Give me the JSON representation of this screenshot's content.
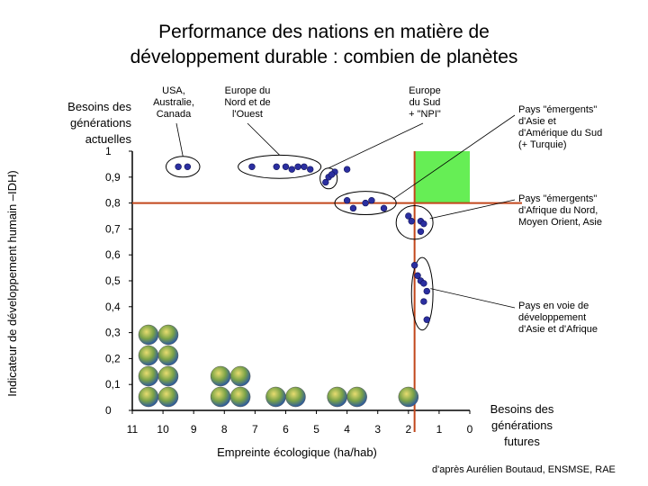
{
  "title_line1": "Performance des nations en matière de",
  "title_line2": "développement durable : combien de planètes",
  "chart_data": {
    "type": "scatter",
    "xlabel": "Empreinte écologique (ha/hab)",
    "ylabel": "Indicateur de développement humain –IDH)",
    "x_reversed": true,
    "xlim": [
      11,
      0
    ],
    "ylim": [
      0,
      1
    ],
    "x_ticks": [
      "11",
      "10",
      "9",
      "8",
      "7",
      "6",
      "5",
      "4",
      "3",
      "2",
      "1",
      "0"
    ],
    "y_ticks": [
      "0",
      "0,1",
      "0,2",
      "0,3",
      "0,4",
      "0,5",
      "0,6",
      "0,7",
      "0,8",
      "0,9",
      "1"
    ],
    "thresholds": {
      "x": 1.8,
      "y": 0.8
    },
    "sustainable_zone": {
      "x": [
        1.8,
        0
      ],
      "y": [
        0.8,
        1
      ]
    },
    "points": [
      {
        "x": 9.5,
        "y": 0.94
      },
      {
        "x": 9.2,
        "y": 0.94
      },
      {
        "x": 7.1,
        "y": 0.94
      },
      {
        "x": 6.3,
        "y": 0.94
      },
      {
        "x": 6.0,
        "y": 0.94
      },
      {
        "x": 5.8,
        "y": 0.93
      },
      {
        "x": 5.6,
        "y": 0.94
      },
      {
        "x": 5.4,
        "y": 0.94
      },
      {
        "x": 5.2,
        "y": 0.93
      },
      {
        "x": 4.4,
        "y": 0.92
      },
      {
        "x": 4.0,
        "y": 0.93
      },
      {
        "x": 4.7,
        "y": 0.88
      },
      {
        "x": 4.6,
        "y": 0.9
      },
      {
        "x": 4.5,
        "y": 0.91
      },
      {
        "x": 4.0,
        "y": 0.81
      },
      {
        "x": 3.8,
        "y": 0.78
      },
      {
        "x": 3.4,
        "y": 0.8
      },
      {
        "x": 3.2,
        "y": 0.81
      },
      {
        "x": 2.8,
        "y": 0.78
      },
      {
        "x": 2.0,
        "y": 0.75
      },
      {
        "x": 1.9,
        "y": 0.73
      },
      {
        "x": 1.6,
        "y": 0.73
      },
      {
        "x": 1.5,
        "y": 0.72
      },
      {
        "x": 1.6,
        "y": 0.69
      },
      {
        "x": 1.8,
        "y": 0.56
      },
      {
        "x": 1.7,
        "y": 0.52
      },
      {
        "x": 1.6,
        "y": 0.5
      },
      {
        "x": 1.5,
        "y": 0.49
      },
      {
        "x": 1.4,
        "y": 0.46
      },
      {
        "x": 1.5,
        "y": 0.42
      },
      {
        "x": 1.4,
        "y": 0.35
      }
    ],
    "groups": [
      {
        "label": "USA,\nAustralie,\nCanada",
        "cx": 9.35,
        "cy": 0.94,
        "rx": 0.55,
        "ry": 0.04
      },
      {
        "label": "Europe du\nNord et de\nl'Ouest",
        "cx": 6.2,
        "cy": 0.94,
        "rx": 1.35,
        "ry": 0.045
      },
      {
        "label": "Europe\ndu Sud\n+ \"NPI\"",
        "cx": 4.6,
        "cy": 0.895,
        "rx": 0.28,
        "ry": 0.04
      },
      {
        "label": "Pays \"émergents\"\nd'Asie et\nd'Amérique du Sud\n(+ Turquie)",
        "cx": 3.4,
        "cy": 0.8,
        "rx": 1.0,
        "ry": 0.045
      },
      {
        "label": "Pays \"émergents\"\nd'Afrique du Nord,\nMoyen Orient, Asie",
        "cx": 1.8,
        "cy": 0.725,
        "rx": 0.6,
        "ry": 0.065
      },
      {
        "label": "Pays en voie de\ndéveloppement\nd'Asie et d'Afrique",
        "cx": 1.55,
        "cy": 0.45,
        "rx": 0.35,
        "ry": 0.14
      }
    ],
    "planet_stacks": [
      {
        "x": 10.15,
        "count": 8
      },
      {
        "x": 7.8,
        "count": 4
      },
      {
        "x": 6.0,
        "count": 2
      },
      {
        "x": 4.0,
        "count": 2
      },
      {
        "x": 2.0,
        "count": 1
      }
    ]
  },
  "left_annotation": "Besoins des\ngénérations\nactuelles",
  "right_annotation": "Besoins des\ngénérations\nfutures",
  "credit": "d'après Aurélien Boutaud, ENSMSE, RAE",
  "colors": {
    "point": "#2b2fa0",
    "threshold": "#c2461b",
    "zone": "#66ee55"
  }
}
